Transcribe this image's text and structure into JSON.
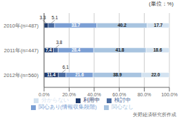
{
  "chart_data": {
    "type": "bar",
    "orientation": "horizontal",
    "stacked": true,
    "grid": true,
    "legend": "bottom",
    "data_labels": true,
    "annotations": [
      "(単位：%)",
      "矢野経済研究所作成"
    ],
    "categories": [
      "2010年(n=487)",
      "2011年(n=447)",
      "2012年(n=560)"
    ],
    "series": [
      {
        "name": "利用中",
        "color": "#1f3b6e",
        "values": [
          3.3,
          7.4,
          11.4
        ]
      },
      {
        "name": "検討中",
        "color": "#4a6ba0",
        "values": [
          5.1,
          3.8,
          6.1
        ]
      },
      {
        "name": "関心あり(情報収集段階)",
        "color": "#7b9fd4",
        "values": [
          33.7,
          28.4,
          21.6
        ]
      },
      {
        "name": "関心なし",
        "color": "#a8c4e0",
        "values": [
          40.2,
          41.8,
          38.9
        ]
      },
      {
        "name": "分からない",
        "color": "#d3e2f0",
        "values": [
          17.7,
          18.6,
          22.0
        ],
        "value_labels": [
          "17.7",
          "18.6",
          "22.0"
        ]
      }
    ],
    "xlim": [
      0,
      100
    ],
    "xticks": [
      {
        "value": 0,
        "label": "0.0%"
      },
      {
        "value": 20,
        "label": "20.0%"
      },
      {
        "value": 40,
        "label": "40.0%"
      },
      {
        "value": 60,
        "label": "60.0%"
      },
      {
        "value": 80,
        "label": "80.0%"
      },
      {
        "value": 100,
        "label": "100.0%"
      }
    ]
  }
}
